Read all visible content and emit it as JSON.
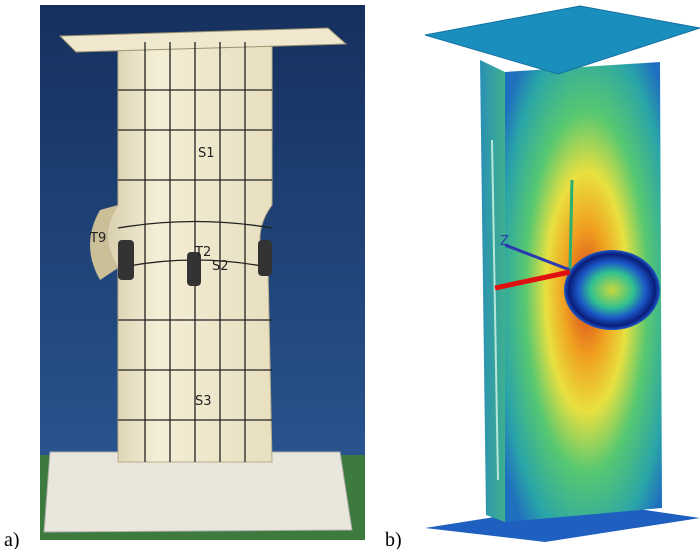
{
  "panels": [
    {
      "label": "a)",
      "markings": [
        "S1",
        "T2",
        "S2",
        "S3",
        "T9"
      ]
    },
    {
      "label": "b)",
      "axis_label": "Z"
    }
  ]
}
